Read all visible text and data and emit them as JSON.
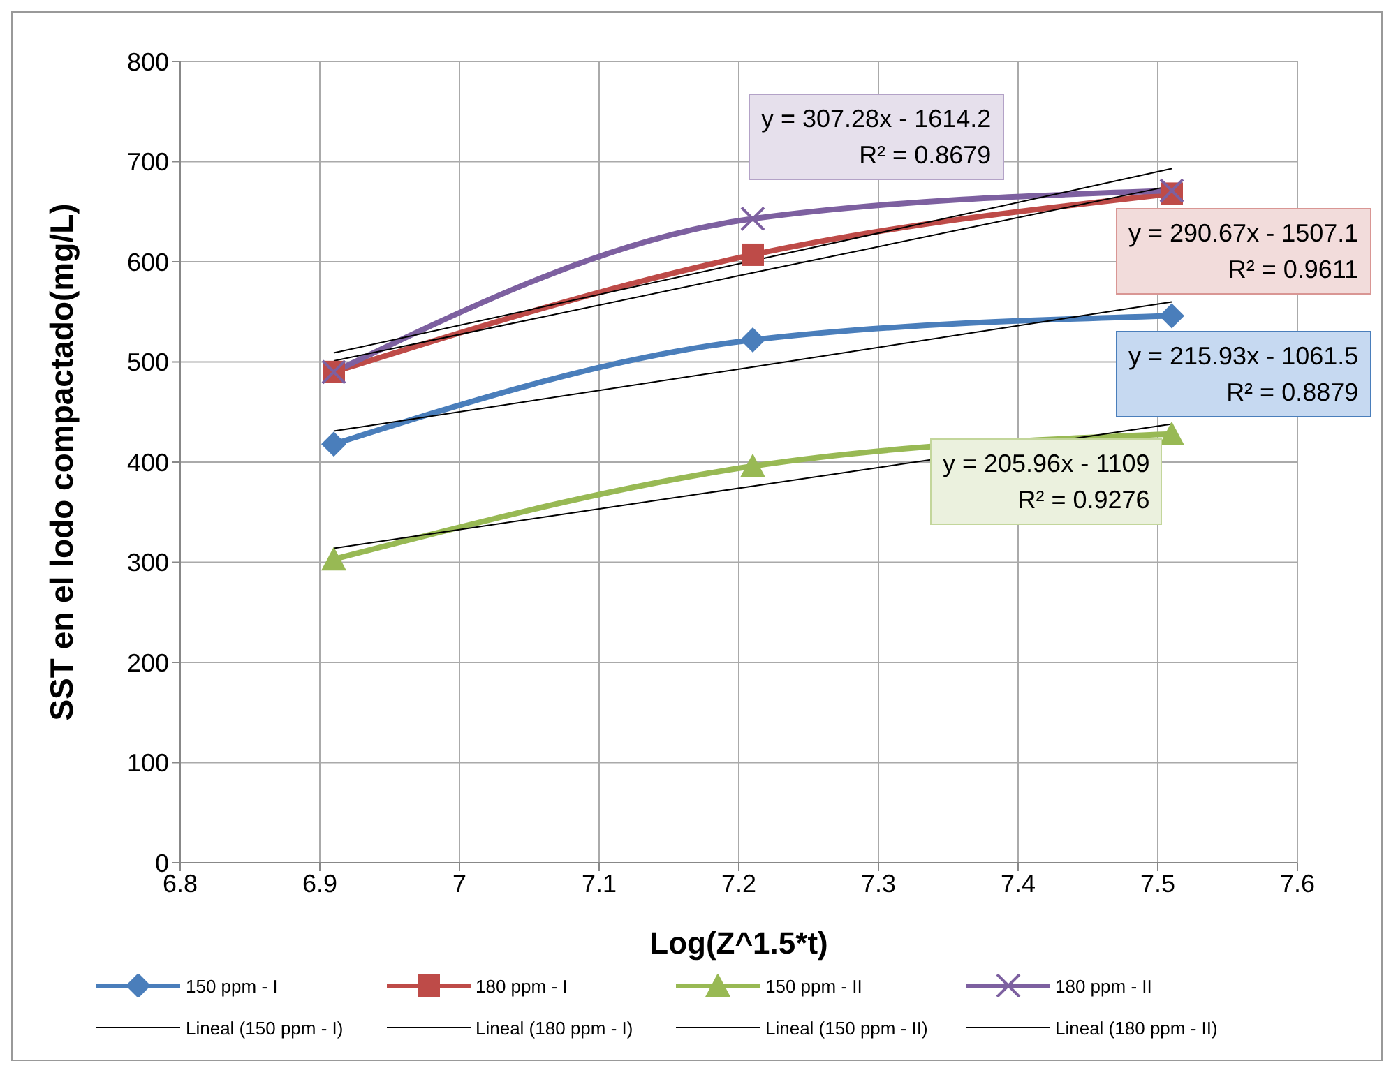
{
  "chart_data": {
    "type": "line",
    "xlabel": "Log(Z^1.5*t)",
    "ylabel": "SST  en el lodo compactado(mg/L)",
    "x": [
      6.91,
      7.21,
      7.51
    ],
    "xlim": [
      6.8,
      7.6
    ],
    "xticks": [
      6.8,
      6.9,
      7,
      7.1,
      7.2,
      7.3,
      7.4,
      7.5,
      7.6
    ],
    "ylim": [
      0,
      800
    ],
    "yticks": [
      0,
      100,
      200,
      300,
      400,
      500,
      600,
      700,
      800
    ],
    "grid": true,
    "legend": "bottom",
    "series": [
      {
        "name": "150 ppm - I",
        "color": "#4a7ebb",
        "values": [
          418,
          522,
          546
        ],
        "marker": "diamond"
      },
      {
        "name": "180 ppm - I",
        "color": "#be4b48",
        "values": [
          490,
          607,
          668
        ],
        "marker": "square"
      },
      {
        "name": "150 ppm - II",
        "color": "#98b954",
        "values": [
          303,
          396,
          428
        ],
        "marker": "triangle"
      },
      {
        "name": "180 ppm - II",
        "color": "#7d60a0",
        "values": [
          490,
          643,
          671
        ],
        "marker": "cross"
      },
      {
        "name": "Lineal (150 ppm - I)",
        "type": "line",
        "color": "#000000",
        "values": [
          431,
          495,
          560
        ],
        "marker": "none"
      },
      {
        "name": "Lineal (180 ppm - I)",
        "type": "line",
        "color": "#000000",
        "values": [
          501,
          589,
          676
        ],
        "marker": "none"
      },
      {
        "name": "Lineal (150 ppm - II)",
        "type": "line",
        "color": "#000000",
        "values": [
          314,
          376,
          438
        ],
        "marker": "none"
      },
      {
        "name": "Lineal (180 ppm - II)",
        "type": "line",
        "color": "#000000",
        "values": [
          509,
          601,
          693
        ],
        "marker": "none"
      }
    ],
    "annotations": [
      "y = 307.28x - 1614.2\nR² = 0.8679",
      "y = 290.67x - 1507.1\nR² = 0.9611",
      "y = 215.93x - 1061.5\nR² = 0.8879",
      "y = 205.96x - 1109\nR² = 0.9276"
    ]
  }
}
